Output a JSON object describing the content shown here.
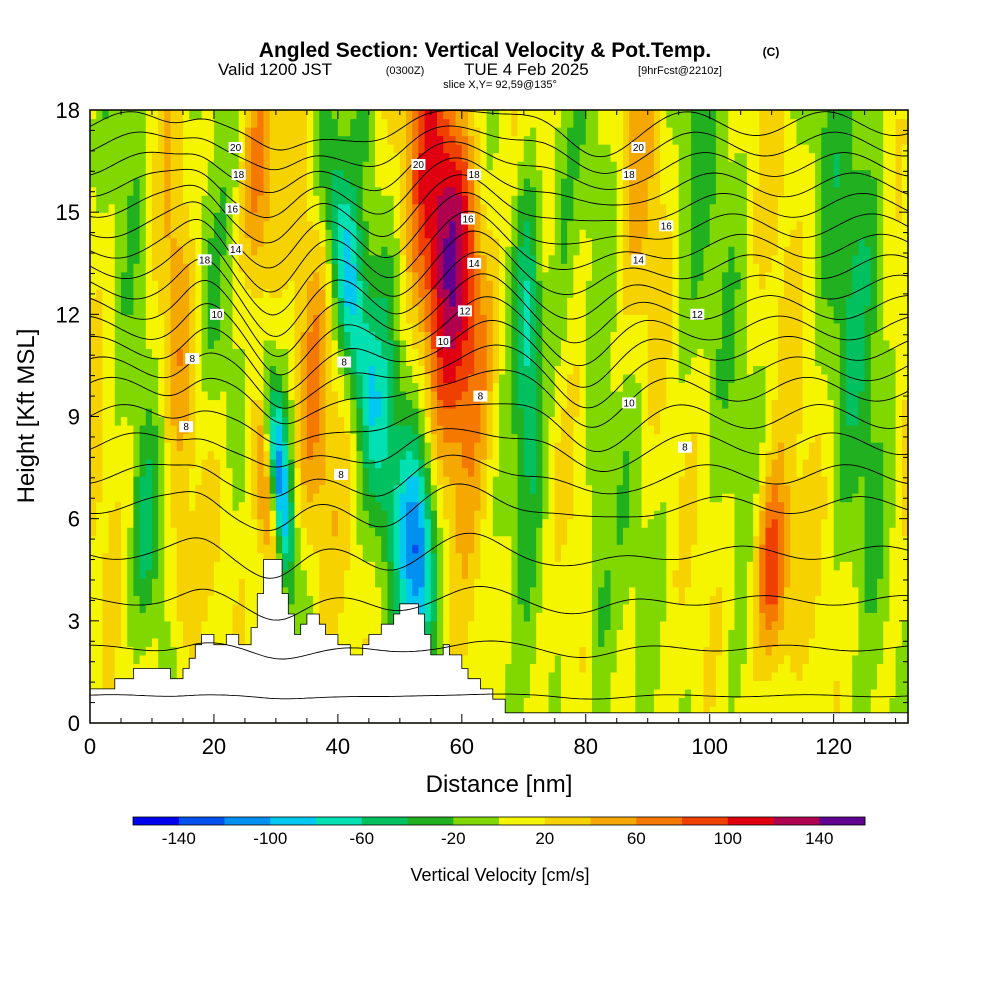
{
  "chart_data": {
    "type": "heatmap",
    "title": "Angled Section: Vertical Velocity & Pot.Temp.",
    "title_mark": "(C)",
    "subtitle": {
      "valid": "Valid 1200 JST",
      "utc": "(0300Z)",
      "date": "TUE 4 Feb 2025",
      "forecast": "[9hrFcst@2210z]",
      "slice": "slice X,Y= 92,59@135°"
    },
    "xlabel": "Distance [nm]",
    "ylabel": "Height [Kft MSL]",
    "xlim": [
      0,
      132
    ],
    "ylim": [
      0,
      18
    ],
    "x_ticks": [
      0,
      20,
      40,
      60,
      80,
      100,
      120
    ],
    "y_ticks": [
      0,
      3,
      6,
      9,
      12,
      15,
      18
    ],
    "colorbar": {
      "label": "Vertical Velocity [cm/s]",
      "tick_values": [
        -140,
        -100,
        -60,
        -20,
        20,
        60,
        100,
        140
      ],
      "tick_labels": [
        "-140",
        "-100",
        "-60",
        "-20",
        "20",
        "60",
        "100",
        "140"
      ],
      "bins": [
        {
          "lo": -160,
          "hi": -140,
          "color": "#0000f0"
        },
        {
          "lo": -140,
          "hi": -120,
          "color": "#0050f0"
        },
        {
          "lo": -120,
          "hi": -100,
          "color": "#0090f0"
        },
        {
          "lo": -100,
          "hi": -80,
          "color": "#00c8f0"
        },
        {
          "lo": -80,
          "hi": -60,
          "color": "#00e0b0"
        },
        {
          "lo": -60,
          "hi": -40,
          "color": "#00c060"
        },
        {
          "lo": -40,
          "hi": -20,
          "color": "#20b020"
        },
        {
          "lo": -20,
          "hi": 0,
          "color": "#80d800"
        },
        {
          "lo": 0,
          "hi": 20,
          "color": "#f5f500"
        },
        {
          "lo": 20,
          "hi": 40,
          "color": "#f5d200"
        },
        {
          "lo": 40,
          "hi": 60,
          "color": "#f5a800"
        },
        {
          "lo": 60,
          "hi": 80,
          "color": "#f57800"
        },
        {
          "lo": 80,
          "hi": 100,
          "color": "#f04000"
        },
        {
          "lo": 100,
          "hi": 120,
          "color": "#e00010"
        },
        {
          "lo": 120,
          "hi": 140,
          "color": "#b00050"
        },
        {
          "lo": 140,
          "hi": 160,
          "color": "#600090"
        }
      ]
    },
    "velocity_features": [
      {
        "x": 29,
        "h": 6.5,
        "sx": 1.3,
        "sh": 2.4,
        "amp": 90,
        "tilt": -0.45,
        "tilt_base": 6
      },
      {
        "x": 31,
        "h": 7.0,
        "sx": 1.3,
        "sh": 2.2,
        "amp": -110,
        "tilt": -0.45,
        "tilt_base": 6
      },
      {
        "x": 53,
        "h": 5.0,
        "sx": 2.0,
        "sh": 2.2,
        "amp": -120,
        "tilt": 0,
        "tilt_base": 5
      },
      {
        "x": 62,
        "h": 14.5,
        "sx": 3.5,
        "sh": 4.0,
        "amp": 110,
        "tilt": -0.6,
        "tilt_base": 10
      },
      {
        "x": 58,
        "h": 12.0,
        "sx": 3.0,
        "sh": 4.0,
        "amp": 45,
        "tilt": -0.6,
        "tilt_base": 10
      },
      {
        "x": 71,
        "h": 11.5,
        "sx": 1.8,
        "sh": 3.5,
        "amp": -85,
        "tilt": 0,
        "tilt_base": 10
      },
      {
        "x": 44,
        "h": 13.0,
        "sx": 2.0,
        "sh": 3.5,
        "amp": -80,
        "tilt": -0.8,
        "tilt_base": 10
      },
      {
        "x": 110,
        "h": 4.5,
        "sx": 2.0,
        "sh": 2.0,
        "amp": 95,
        "tilt": 0,
        "tilt_base": 4
      },
      {
        "x": 27,
        "h": 15.5,
        "sx": 2.0,
        "sh": 3.0,
        "amp": 75,
        "tilt": 0,
        "tilt_base": 15
      },
      {
        "x": 20,
        "h": 13.0,
        "sx": 2.5,
        "sh": 4.0,
        "amp": -45,
        "tilt": -0.5,
        "tilt_base": 10
      },
      {
        "x": 14,
        "h": 12.0,
        "sx": 2.5,
        "sh": 4.0,
        "amp": 45,
        "tilt": 0,
        "tilt_base": 10
      },
      {
        "x": 9,
        "h": 5.5,
        "sx": 1.5,
        "sh": 2.0,
        "amp": -40,
        "tilt": 0,
        "tilt_base": 5
      },
      {
        "x": 15,
        "h": 4.0,
        "sx": 1.5,
        "sh": 1.5,
        "amp": 40,
        "tilt": 0,
        "tilt_base": 4
      },
      {
        "x": 76,
        "h": 14.0,
        "sx": 1.5,
        "sh": 4.0,
        "amp": -30,
        "tilt": 0,
        "tilt_base": 12
      },
      {
        "x": 82,
        "h": 4.0,
        "sx": 1.5,
        "sh": 2.5,
        "amp": -35,
        "tilt": 0,
        "tilt_base": 4
      },
      {
        "x": 96,
        "h": 14.0,
        "sx": 3.0,
        "sh": 5.0,
        "amp": -25,
        "tilt": 0,
        "tilt_base": 12
      },
      {
        "x": 125,
        "h": 14.0,
        "sx": 4.0,
        "sh": 5.0,
        "amp": -35,
        "tilt": 0,
        "tilt_base": 12
      },
      {
        "x": 88,
        "h": 15.0,
        "sx": 3.0,
        "sh": 4.0,
        "amp": 30,
        "tilt": 0,
        "tilt_base": 12
      },
      {
        "x": 36,
        "h": 9.0,
        "sx": 2.0,
        "sh": 3.0,
        "amp": 40,
        "tilt": 0,
        "tilt_base": 9
      },
      {
        "x": 48,
        "h": 9.0,
        "sx": 2.5,
        "sh": 3.0,
        "amp": -35,
        "tilt": 0,
        "tilt_base": 9
      }
    ],
    "terrain": [
      [
        0,
        1.0
      ],
      [
        4,
        1.0
      ],
      [
        4,
        1.3
      ],
      [
        7,
        1.3
      ],
      [
        7,
        1.6
      ],
      [
        13,
        1.6
      ],
      [
        13,
        1.3
      ],
      [
        15,
        1.3
      ],
      [
        15,
        1.6
      ],
      [
        16,
        1.6
      ],
      [
        16,
        1.9
      ],
      [
        17,
        1.9
      ],
      [
        17,
        2.3
      ],
      [
        18,
        2.3
      ],
      [
        18,
        2.6
      ],
      [
        20,
        2.6
      ],
      [
        20,
        2.3
      ],
      [
        22,
        2.3
      ],
      [
        22,
        2.6
      ],
      [
        24,
        2.6
      ],
      [
        24,
        2.3
      ],
      [
        26,
        2.3
      ],
      [
        26,
        2.8
      ],
      [
        27,
        2.8
      ],
      [
        27,
        3.8
      ],
      [
        28,
        3.8
      ],
      [
        28,
        4.8
      ],
      [
        31,
        4.8
      ],
      [
        31,
        3.8
      ],
      [
        32,
        3.8
      ],
      [
        32,
        3.2
      ],
      [
        33,
        3.2
      ],
      [
        33,
        2.6
      ],
      [
        34,
        2.6
      ],
      [
        34,
        2.9
      ],
      [
        35,
        2.9
      ],
      [
        35,
        3.2
      ],
      [
        37,
        3.2
      ],
      [
        37,
        2.9
      ],
      [
        38,
        2.9
      ],
      [
        38,
        2.6
      ],
      [
        40,
        2.6
      ],
      [
        40,
        2.3
      ],
      [
        42,
        2.3
      ],
      [
        42,
        2.0
      ],
      [
        44,
        2.0
      ],
      [
        44,
        2.3
      ],
      [
        45,
        2.3
      ],
      [
        45,
        2.6
      ],
      [
        47,
        2.6
      ],
      [
        47,
        2.9
      ],
      [
        49,
        2.9
      ],
      [
        49,
        3.2
      ],
      [
        50,
        3.2
      ],
      [
        50,
        3.5
      ],
      [
        53,
        3.5
      ],
      [
        53,
        3.2
      ],
      [
        54,
        3.2
      ],
      [
        54,
        2.6
      ],
      [
        55,
        2.6
      ],
      [
        55,
        2.0
      ],
      [
        57,
        2.0
      ],
      [
        57,
        2.3
      ],
      [
        58,
        2.3
      ],
      [
        58,
        2.0
      ],
      [
        60,
        2.0
      ],
      [
        60,
        1.6
      ],
      [
        61,
        1.6
      ],
      [
        61,
        1.3
      ],
      [
        63,
        1.3
      ],
      [
        63,
        1.0
      ],
      [
        65,
        1.0
      ],
      [
        65,
        0.7
      ],
      [
        67,
        0.7
      ],
      [
        67,
        0.3
      ],
      [
        132,
        0.3
      ],
      [
        132,
        0
      ],
      [
        0,
        0
      ]
    ],
    "isentropes": [
      {
        "base": 0.8,
        "label": ""
      },
      {
        "base": 2.2,
        "label": ""
      },
      {
        "base": 3.6,
        "label": ""
      },
      {
        "base": 5.0,
        "label": ""
      },
      {
        "base": 6.4,
        "label": ""
      },
      {
        "base": 7.3,
        "label": "8"
      },
      {
        "base": 8.2,
        "label": ""
      },
      {
        "base": 9.0,
        "label": "8"
      },
      {
        "base": 9.8,
        "label": ""
      },
      {
        "base": 10.4,
        "label": "8"
      },
      {
        "base": 11.0,
        "label": "10"
      },
      {
        "base": 11.6,
        "label": ""
      },
      {
        "base": 12.2,
        "label": "12"
      },
      {
        "base": 12.8,
        "label": ""
      },
      {
        "base": 13.4,
        "label": "14"
      },
      {
        "base": 14.0,
        "label": ""
      },
      {
        "base": 14.6,
        "label": "16"
      },
      {
        "base": 15.2,
        "label": ""
      },
      {
        "base": 15.8,
        "label": "18"
      },
      {
        "base": 16.4,
        "label": ""
      },
      {
        "base": 17.0,
        "label": "20"
      },
      {
        "base": 17.6,
        "label": ""
      }
    ],
    "contour_labels": [
      {
        "x": 23.5,
        "h": 16.9,
        "text": "20"
      },
      {
        "x": 24.0,
        "h": 16.1,
        "text": "18"
      },
      {
        "x": 23.0,
        "h": 15.1,
        "text": "16"
      },
      {
        "x": 23.5,
        "h": 13.9,
        "text": "14"
      },
      {
        "x": 18.5,
        "h": 13.6,
        "text": "18"
      },
      {
        "x": 20.5,
        "h": 12.0,
        "text": "10"
      },
      {
        "x": 16.5,
        "h": 10.7,
        "text": "8"
      },
      {
        "x": 15.5,
        "h": 8.7,
        "text": "8"
      },
      {
        "x": 41.0,
        "h": 10.6,
        "text": "8"
      },
      {
        "x": 40.5,
        "h": 7.3,
        "text": "8"
      },
      {
        "x": 53.0,
        "h": 16.4,
        "text": "20"
      },
      {
        "x": 62.0,
        "h": 16.1,
        "text": "18"
      },
      {
        "x": 61.0,
        "h": 14.8,
        "text": "16"
      },
      {
        "x": 62.0,
        "h": 13.5,
        "text": "14"
      },
      {
        "x": 60.5,
        "h": 12.1,
        "text": "12"
      },
      {
        "x": 57.0,
        "h": 11.2,
        "text": "10"
      },
      {
        "x": 63.0,
        "h": 9.6,
        "text": "8"
      },
      {
        "x": 88.5,
        "h": 16.9,
        "text": "20"
      },
      {
        "x": 87.0,
        "h": 16.1,
        "text": "18"
      },
      {
        "x": 93.0,
        "h": 14.6,
        "text": "16"
      },
      {
        "x": 88.5,
        "h": 13.6,
        "text": "14"
      },
      {
        "x": 98.0,
        "h": 12.0,
        "text": "12"
      },
      {
        "x": 87.0,
        "h": 9.4,
        "text": "10"
      },
      {
        "x": 96.0,
        "h": 8.1,
        "text": "8"
      }
    ]
  }
}
